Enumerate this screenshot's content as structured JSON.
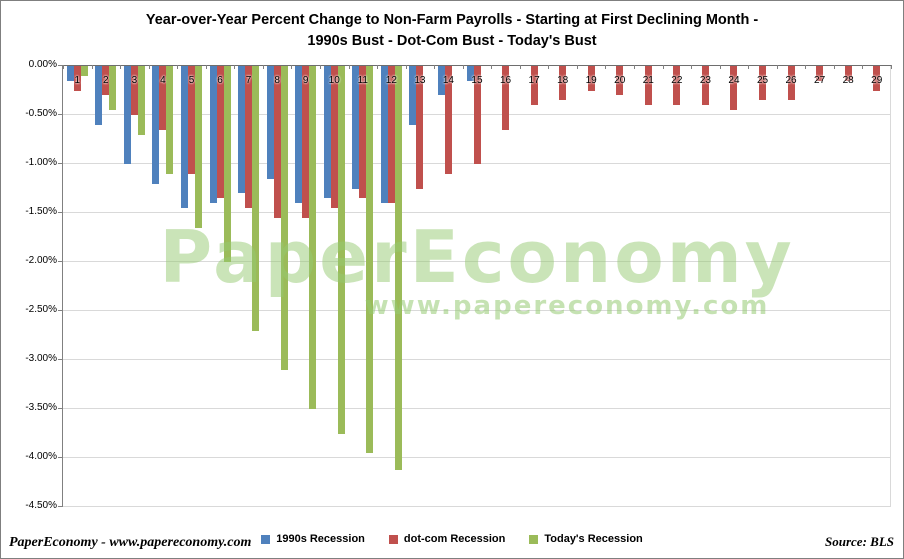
{
  "title": {
    "line1": "Year-over-Year Percent Change to Non-Farm Payrolls - Starting at First Declining Month -",
    "line2": "1990s Bust - Dot-Com Bust - Today's Bust"
  },
  "watermark": {
    "text": "PaperEconomy",
    "subtext": "www.papereconomy.com"
  },
  "footer": {
    "left": "PaperEconomy - www.papereconomy.com",
    "right": "Source: BLS"
  },
  "colors": {
    "grid": "#d9d9d9",
    "axis": "#808080",
    "watermark": "#96ca72",
    "series_blue": "#4F81BD",
    "series_red": "#C0504D",
    "series_green": "#9BBB59"
  },
  "chart_data": {
    "type": "bar",
    "title": "Year-over-Year Percent Change to Non-Farm Payrolls - Starting at First Declining Month - 1990s Bust - Dot-Com Bust - Today's Bust",
    "xlabel": "",
    "ylabel": "",
    "categories": [
      "1",
      "2",
      "3",
      "4",
      "5",
      "6",
      "7",
      "8",
      "9",
      "10",
      "11",
      "12",
      "13",
      "14",
      "15",
      "16",
      "17",
      "18",
      "19",
      "20",
      "21",
      "22",
      "23",
      "24",
      "25",
      "26",
      "27",
      "28",
      "29"
    ],
    "series": [
      {
        "name": "1990s Recession",
        "color": "#4F81BD",
        "values": [
          -0.15,
          -0.6,
          -1.0,
          -1.2,
          -1.45,
          -1.4,
          -1.3,
          -1.15,
          -1.4,
          -1.35,
          -1.25,
          -1.4,
          -0.6,
          -0.3,
          -0.15,
          null,
          null,
          null,
          null,
          null,
          null,
          null,
          null,
          null,
          null,
          null,
          null,
          null,
          null
        ]
      },
      {
        "name": "dot-com Recession",
        "color": "#C0504D",
        "values": [
          -0.25,
          -0.3,
          -0.5,
          -0.65,
          -1.1,
          -1.35,
          -1.45,
          -1.55,
          -1.55,
          -1.45,
          -1.35,
          -1.4,
          -1.25,
          -1.1,
          -1.0,
          -0.65,
          -0.4,
          -0.35,
          -0.25,
          -0.3,
          -0.4,
          -0.4,
          -0.4,
          -0.45,
          -0.35,
          -0.35,
          -0.15,
          -0.15,
          -0.25
        ]
      },
      {
        "name": "Today's Recession",
        "color": "#9BBB59",
        "values": [
          -0.1,
          -0.45,
          -0.7,
          -1.1,
          -1.65,
          -2.0,
          -2.7,
          -3.1,
          -3.5,
          -3.75,
          -3.95,
          -4.12,
          null,
          null,
          null,
          null,
          null,
          null,
          null,
          null,
          null,
          null,
          null,
          null,
          null,
          null,
          null,
          null,
          null
        ]
      }
    ],
    "ylim": [
      -4.5,
      0
    ],
    "ytick_step": 0.5,
    "ytick_labels": [
      "0.00%",
      "-0.50%",
      "-1.00%",
      "-1.50%",
      "-2.00%",
      "-2.50%",
      "-3.00%",
      "-3.50%",
      "-4.00%",
      "-4.50%"
    ],
    "grid": true,
    "legend_position": "bottom"
  }
}
